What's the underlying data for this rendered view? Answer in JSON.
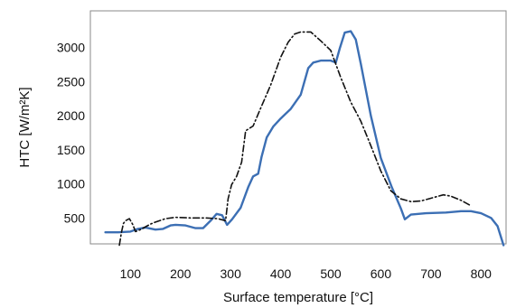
{
  "chart_data": {
    "type": "line",
    "title": "",
    "xlabel": "Surface temperature [°C]",
    "ylabel": "HTC [W/m²K]",
    "xlim": [
      20,
      850
    ],
    "ylim": [
      120,
      3540
    ],
    "grid": false,
    "legend": "none",
    "x_ticks": [
      100,
      200,
      300,
      400,
      500,
      600,
      700,
      800
    ],
    "y_ticks": [
      500,
      1000,
      1500,
      2000,
      2500,
      3000
    ],
    "x_tick_labels": [
      "100",
      "200",
      "300",
      "400",
      "500",
      "600",
      "700",
      "800"
    ],
    "y_tick_labels": [
      "500",
      "1000",
      "1500",
      "2000",
      "2500",
      "3000"
    ],
    "series": [
      {
        "color": "#3c6fb4",
        "style": "solid",
        "points": [
          [
            50,
            290
          ],
          [
            75,
            290
          ],
          [
            100,
            300
          ],
          [
            115,
            340
          ],
          [
            130,
            360
          ],
          [
            150,
            330
          ],
          [
            165,
            340
          ],
          [
            180,
            390
          ],
          [
            190,
            400
          ],
          [
            210,
            390
          ],
          [
            230,
            350
          ],
          [
            245,
            350
          ],
          [
            260,
            460
          ],
          [
            272,
            560
          ],
          [
            283,
            540
          ],
          [
            293,
            400
          ],
          [
            303,
            480
          ],
          [
            320,
            650
          ],
          [
            335,
            950
          ],
          [
            345,
            1110
          ],
          [
            355,
            1150
          ],
          [
            362,
            1400
          ],
          [
            372,
            1680
          ],
          [
            385,
            1840
          ],
          [
            400,
            1960
          ],
          [
            420,
            2100
          ],
          [
            440,
            2310
          ],
          [
            455,
            2700
          ],
          [
            465,
            2780
          ],
          [
            480,
            2810
          ],
          [
            500,
            2810
          ],
          [
            510,
            2780
          ],
          [
            518,
            2990
          ],
          [
            528,
            3220
          ],
          [
            540,
            3240
          ],
          [
            550,
            3120
          ],
          [
            560,
            2760
          ],
          [
            580,
            2000
          ],
          [
            600,
            1380
          ],
          [
            622,
            950
          ],
          [
            640,
            640
          ],
          [
            648,
            480
          ],
          [
            660,
            550
          ],
          [
            690,
            570
          ],
          [
            730,
            580
          ],
          [
            760,
            600
          ],
          [
            780,
            600
          ],
          [
            800,
            570
          ],
          [
            820,
            500
          ],
          [
            833,
            380
          ],
          [
            845,
            100
          ]
        ]
      },
      {
        "color": "#111111",
        "style": "dashdot",
        "points": [
          [
            78,
            100
          ],
          [
            82,
            290
          ],
          [
            86,
            420
          ],
          [
            90,
            460
          ],
          [
            98,
            490
          ],
          [
            105,
            400
          ],
          [
            110,
            300
          ],
          [
            120,
            330
          ],
          [
            140,
            410
          ],
          [
            150,
            440
          ],
          [
            170,
            490
          ],
          [
            190,
            510
          ],
          [
            220,
            500
          ],
          [
            250,
            500
          ],
          [
            275,
            490
          ],
          [
            290,
            460
          ],
          [
            295,
            780
          ],
          [
            302,
            990
          ],
          [
            312,
            1110
          ],
          [
            322,
            1320
          ],
          [
            330,
            1780
          ],
          [
            345,
            1850
          ],
          [
            360,
            2110
          ],
          [
            380,
            2450
          ],
          [
            400,
            2860
          ],
          [
            415,
            3080
          ],
          [
            428,
            3200
          ],
          [
            440,
            3230
          ],
          [
            460,
            3230
          ],
          [
            480,
            3100
          ],
          [
            500,
            2960
          ],
          [
            520,
            2560
          ],
          [
            540,
            2200
          ],
          [
            560,
            1920
          ],
          [
            580,
            1560
          ],
          [
            600,
            1190
          ],
          [
            620,
            900
          ],
          [
            640,
            780
          ],
          [
            660,
            740
          ],
          [
            680,
            750
          ],
          [
            705,
            800
          ],
          [
            725,
            840
          ],
          [
            740,
            820
          ],
          [
            760,
            760
          ],
          [
            780,
            680
          ]
        ]
      }
    ]
  }
}
